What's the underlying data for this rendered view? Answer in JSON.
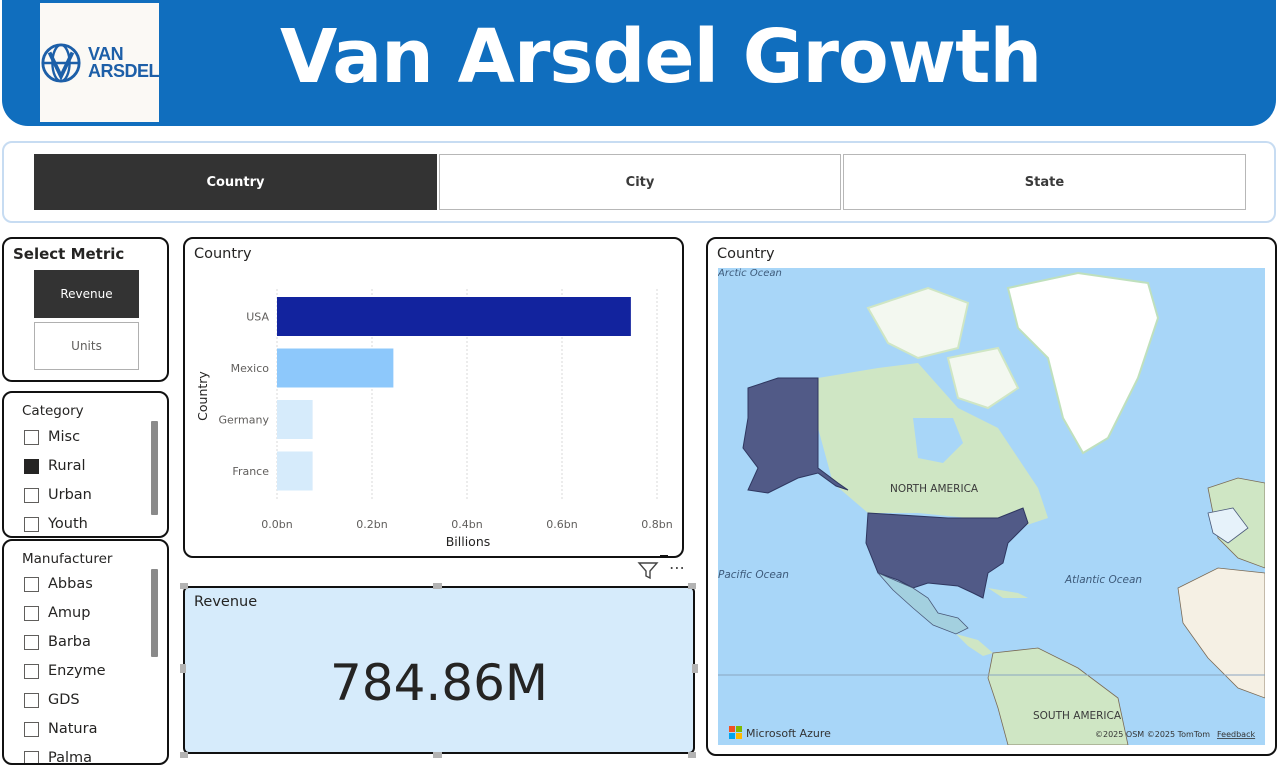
{
  "header": {
    "logo_text_line1": "VAN",
    "logo_text_line2": "ARSDEL",
    "title": "Van Arsdel Growth"
  },
  "nav": {
    "tabs": [
      {
        "label": "Country",
        "active": true
      },
      {
        "label": "City",
        "active": false
      },
      {
        "label": "State",
        "active": false
      }
    ]
  },
  "metric_selector": {
    "title": "Select Metric",
    "options": [
      {
        "label": "Revenue",
        "active": true
      },
      {
        "label": "Units",
        "active": false
      }
    ]
  },
  "category_slicer": {
    "title": "Category",
    "items": [
      {
        "label": "Misc",
        "checked": false
      },
      {
        "label": "Rural",
        "checked": true
      },
      {
        "label": "Urban",
        "checked": false
      },
      {
        "label": "Youth",
        "checked": false
      }
    ]
  },
  "manufacturer_slicer": {
    "title": "Manufacturer",
    "items": [
      {
        "label": "Abbas",
        "checked": false
      },
      {
        "label": "Amup",
        "checked": false
      },
      {
        "label": "Barba",
        "checked": false
      },
      {
        "label": "Enzyme",
        "checked": false
      },
      {
        "label": "GDS",
        "checked": false
      },
      {
        "label": "Natura",
        "checked": false
      },
      {
        "label": "Palma",
        "checked": false
      }
    ]
  },
  "bar_visual": {
    "title": "Country"
  },
  "chart_data": {
    "type": "bar",
    "orientation": "horizontal",
    "categories": [
      "USA",
      "Mexico",
      "Germany",
      "France"
    ],
    "values": [
      0.745,
      0.245,
      0.075,
      0.075
    ],
    "colors": [
      "#12239e",
      "#8dc8fb",
      "#d6ebfb",
      "#d6ebfb"
    ],
    "xlabel": "Billions",
    "ylabel": "Country",
    "xlim": [
      0,
      0.8
    ],
    "xticks": [
      "0.0bn",
      "0.2bn",
      "0.4bn",
      "0.6bn",
      "0.8bn"
    ],
    "grid": true
  },
  "card": {
    "title": "Revenue",
    "value": "784.86M",
    "menu_icon": "ellipsis-icon",
    "filter_icon": "filter-icon"
  },
  "map_visual": {
    "title": "Country",
    "labels": {
      "arctic": "Arctic Ocean",
      "north_america": "NORTH AMERICA",
      "pacific": "Pacific Ocean",
      "atlantic": "Atlantic Ocean",
      "south_america": "SOUTH AMERICA"
    },
    "branding": "Microsoft Azure",
    "copyright": "©2025 OSM  ©2025 TomTom",
    "feedback": "Feedback",
    "colors": {
      "ocean": "#a8d6f8",
      "land": "#cfe6c4",
      "highlight": "#515a87",
      "mexico": "#a3d0df"
    }
  }
}
